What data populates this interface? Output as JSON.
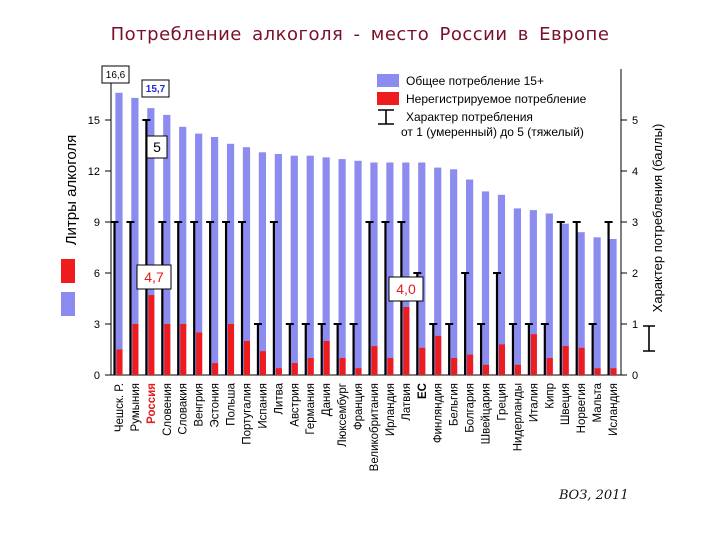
{
  "title": "Потребление алкоголя  -  место России  в  Европе",
  "source": "ВОЗ, 2011",
  "colors": {
    "total": "#8c8cf0",
    "unregistered": "#ee1c1c",
    "whisker": "#000000",
    "title": "#7a0f2a",
    "russia_label": "#e31b1b",
    "callout_blue": "#1f2bd1"
  },
  "chart_data": {
    "type": "bar",
    "title": "Потребление алкоголя  -  место России  в  Европе",
    "ylabel": "Литры алкоголя",
    "y2label": "Характер потребления (баллы)",
    "ylim": [
      0,
      18
    ],
    "y2lim": [
      0,
      6
    ],
    "yticks": [
      0,
      3,
      6,
      9,
      12,
      15
    ],
    "y2ticks": [
      0,
      1,
      2,
      3,
      4,
      5
    ],
    "categories": [
      "Чешск. Р.",
      "Румыния",
      "Россия",
      "Словения",
      "Словакия",
      "Венгрия",
      "Эстония",
      "Польша",
      "Португалия",
      "Испания",
      "Литва",
      "Австрия",
      "Германия",
      "Дания",
      "Люксембург",
      "Франция",
      "Великобритания",
      "Ирландия",
      "Латвия",
      "ЕС",
      "Финляндия",
      "Бельгия",
      "Болгария",
      "Швейцария",
      "Греция",
      "Нидерланды",
      "Италия",
      "Кипр",
      "Швеция",
      "Норвегия",
      "Мальта",
      "Исландия"
    ],
    "series": [
      {
        "name": "Общее потребление 15+",
        "values": [
          16.6,
          16.3,
          15.7,
          15.3,
          14.6,
          14.2,
          14.0,
          13.6,
          13.4,
          13.1,
          13.0,
          12.9,
          12.9,
          12.8,
          12.7,
          12.6,
          12.5,
          12.5,
          12.5,
          12.5,
          12.2,
          12.1,
          11.5,
          10.8,
          10.6,
          9.8,
          9.7,
          9.5,
          8.9,
          8.4,
          8.1,
          8.0
        ]
      },
      {
        "name": "Нерегистрируемое потребление",
        "values": [
          1.5,
          3.0,
          4.7,
          3.0,
          3.0,
          2.5,
          0.7,
          3.0,
          2.0,
          1.4,
          0.4,
          0.7,
          1.0,
          2.0,
          1.0,
          0.4,
          1.7,
          1.0,
          4.0,
          1.6,
          2.3,
          1.0,
          1.2,
          0.6,
          1.8,
          0.6,
          2.4,
          1.0,
          1.7,
          1.6,
          0.4,
          0.4
        ]
      },
      {
        "name": "Характер потребления от 1 (умеренный) до 5 (тяжелый)",
        "axis": "right",
        "values": [
          3,
          3,
          5,
          3,
          3,
          3,
          3,
          3,
          3,
          1,
          3,
          1,
          1,
          1,
          1,
          1,
          3,
          3,
          3,
          2,
          1,
          1,
          2,
          1,
          2,
          1,
          1,
          1,
          3,
          3,
          1,
          3
        ]
      }
    ],
    "legend": {
      "position": "top-right",
      "total_label": "Общее потребление 15+",
      "unreg_label": "Нерегистрируемое потребление",
      "pattern_label_1": "Характер потребления",
      "pattern_label_2": "от 1 (умеренный) до 5 (тяжелый)"
    },
    "annotations": {
      "czech_total": "16,6",
      "russia_total": "15,7",
      "russia_pattern": "5",
      "russia_unreg": "4,7",
      "latvia_unreg": "4,0"
    },
    "highlight_category": "Россия",
    "bold_category": "ЕС"
  }
}
